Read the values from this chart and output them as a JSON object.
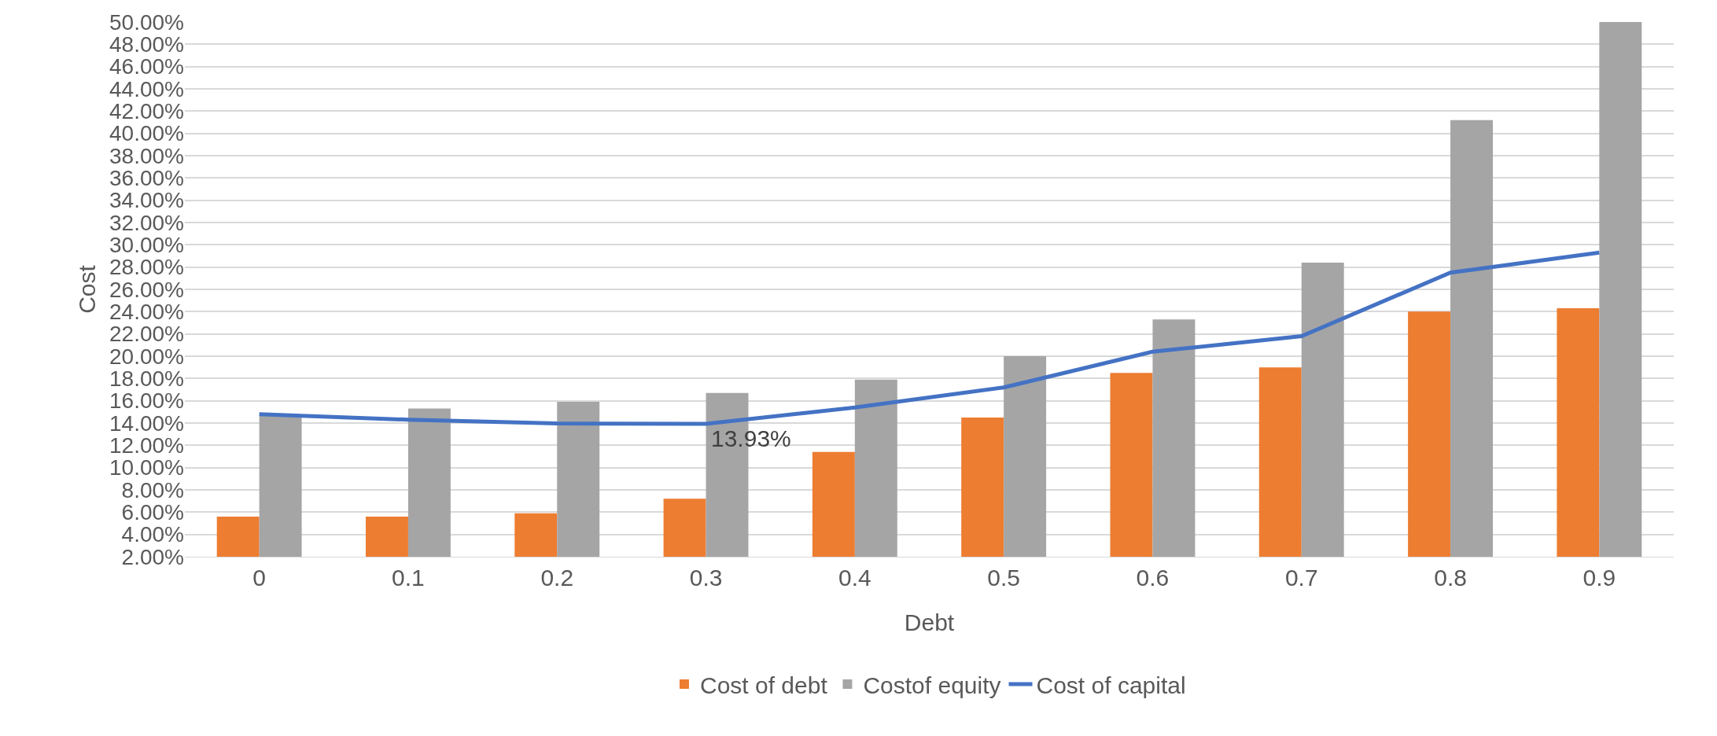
{
  "chart_data": {
    "type": "bar",
    "xlabel": "Debt",
    "ylabel": "Cost",
    "categories": [
      "0",
      "0.1",
      "0.2",
      "0.3",
      "0.4",
      "0.5",
      "0.6",
      "0.7",
      "0.8",
      "0.9"
    ],
    "series": [
      {
        "name": "Cost of debt",
        "color": "#ed7d31",
        "values": [
          5.6,
          5.6,
          5.9,
          7.2,
          11.4,
          14.5,
          18.5,
          19.0,
          24.0,
          24.3
        ]
      },
      {
        "name": "Costof equity",
        "color": "#a5a5a5",
        "values": [
          14.7,
          15.3,
          15.9,
          16.7,
          17.9,
          20.0,
          23.3,
          28.4,
          41.2,
          50.0
        ]
      },
      {
        "name": "Cost of capital",
        "type": "line",
        "color": "#4472c4",
        "values": [
          14.8,
          14.3,
          13.96,
          13.93,
          15.4,
          17.2,
          20.4,
          21.8,
          27.5,
          29.3
        ]
      }
    ],
    "ylim": [
      2,
      50
    ],
    "yticks": [
      {
        "value": 2,
        "label": "2.00%"
      },
      {
        "value": 4,
        "label": "4.00%"
      },
      {
        "value": 6,
        "label": "6.00%"
      },
      {
        "value": 8,
        "label": "8.00%"
      },
      {
        "value": 10,
        "label": "10.00%"
      },
      {
        "value": 12,
        "label": "12.00%"
      },
      {
        "value": 14,
        "label": "14.00%"
      },
      {
        "value": 16,
        "label": "16.00%"
      },
      {
        "value": 18,
        "label": "18.00%"
      },
      {
        "value": 20,
        "label": "20.00%"
      },
      {
        "value": 22,
        "label": "22.00%"
      },
      {
        "value": 24,
        "label": "24.00%"
      },
      {
        "value": 26,
        "label": "26.00%"
      },
      {
        "value": 28,
        "label": "28.00%"
      },
      {
        "value": 30,
        "label": "30.00%"
      },
      {
        "value": 32,
        "label": "32.00%"
      },
      {
        "value": 34,
        "label": "34.00%"
      },
      {
        "value": 36,
        "label": "36.00%"
      },
      {
        "value": 38,
        "label": "38.00%"
      },
      {
        "value": 40,
        "label": "40.00%"
      },
      {
        "value": 42,
        "label": "42.00%"
      },
      {
        "value": 44,
        "label": "44.00%"
      },
      {
        "value": 46,
        "label": "46.00%"
      },
      {
        "value": 48,
        "label": "48.00%"
      },
      {
        "value": 50,
        "label": "50.00%"
      }
    ],
    "annotations": [
      {
        "text": "13.93%",
        "x": "0.3",
        "y": 13.93
      }
    ],
    "grid": "y",
    "legend": "bottom",
    "marker": "none",
    "line_style": "solid"
  }
}
